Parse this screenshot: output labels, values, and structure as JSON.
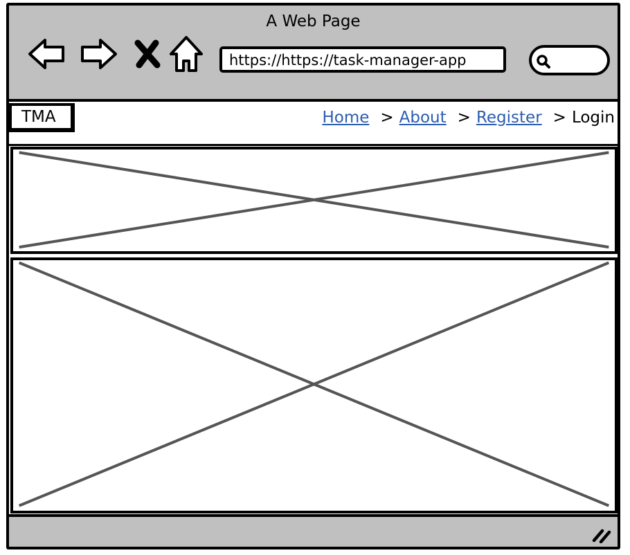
{
  "window": {
    "title": "A Web Page"
  },
  "browser": {
    "url": "https://https://task-manager-app",
    "icons": {
      "back": "back-arrow-icon",
      "forward": "forward-arrow-icon",
      "close": "close-icon",
      "home": "home-icon",
      "search": "search-icon",
      "resize": "resize-grip-icon"
    }
  },
  "header": {
    "logo": "TMA",
    "breadcrumb": [
      {
        "label": "Home",
        "link": true
      },
      {
        "label": "About",
        "link": true
      },
      {
        "label": "Register",
        "link": true
      },
      {
        "label": "Login",
        "link": false
      }
    ],
    "separator": ">"
  },
  "colors": {
    "chrome": "#c0c0c0",
    "link": "#2a5db0",
    "placeholder_stroke": "#555555"
  }
}
